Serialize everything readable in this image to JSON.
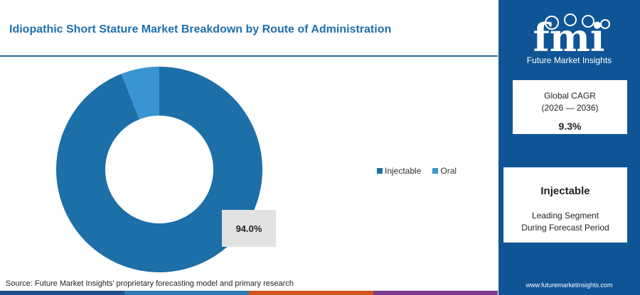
{
  "chart_data": {
    "type": "pie",
    "title": "Idiopathic Short Stature Market Breakdown by Route of Administration",
    "categories": [
      "Injectable",
      "Oral"
    ],
    "values": [
      94.0,
      6.0
    ],
    "colors": [
      "#1c6fa7",
      "#3a94d0"
    ],
    "data_labels": [
      "94.0%"
    ],
    "legend_position": "right"
  },
  "source": "Source: Future Market Insights’ proprietary forecasting model and primary research",
  "footer_colors": [
    "#1f4f8a",
    "#2f79b3",
    "#d2541e",
    "#7c3b8f"
  ],
  "sidebar": {
    "logo_text": "fmi",
    "logo_subtitle": "Future Market Insights",
    "cagr": {
      "label": "Global CAGR",
      "period": "(2026 — 2036)",
      "value": "9.3%"
    },
    "leading_segment": {
      "name": "Injectable",
      "description_line1": "Leading Segment",
      "description_line2": "During Forecast Period"
    },
    "website": "www.futuremarketinsights.com"
  }
}
